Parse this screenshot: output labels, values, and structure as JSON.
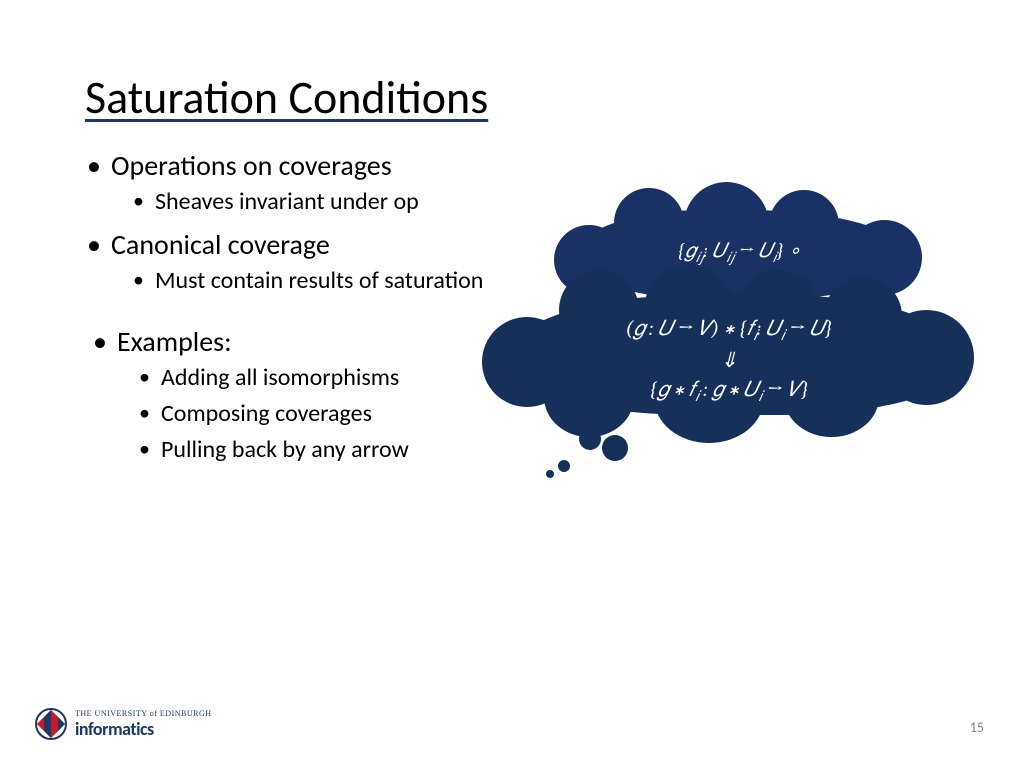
{
  "title": "Saturation Conditions",
  "bullets": {
    "b1": "Operations on coverages",
    "b1a": "Sheaves invariant under op",
    "b2": "Canonical coverage",
    "b2a": "Must contain results of saturation",
    "ex_title": "Examples:",
    "ex1": "Adding all isomorphisms",
    "ex2": "Composing coverages",
    "ex3": "Pulling back by any arrow"
  },
  "cloud": {
    "back_line": "{𝑔<sub>𝑖𝑗</sub>: 𝑈<sub>𝑖𝑗</sub> → 𝑈<sub>𝑖</sub>} ∘",
    "main_line1": "(𝑔 : 𝑈  → 𝑉) ∗  {𝑓<sub>𝑖</sub>: 𝑈<sub>𝑖</sub> → 𝑈}",
    "main_line2": "⇓",
    "main_line3": "{𝑔 ∗ 𝑓<sub>𝑖</sub> :  𝑔 ∗ 𝑈<sub>𝑖</sub> → 𝑉}",
    "bg_back": "#1a3263",
    "bg_main": "#16305a",
    "text_color": "#ffffff"
  },
  "footer": {
    "uni_line1": "THE UNIVERSITY of EDINBURGH",
    "uni_line2": "informatics",
    "page_number": "15",
    "accent": "#1f3864"
  },
  "colors": {
    "background": "#ffffff",
    "title_underline": "#1f3864",
    "body_text": "#000000",
    "pagenum": "#7f7f7f"
  },
  "typography": {
    "title_fontsize": 46,
    "body_fontsize": 28,
    "sub_fontsize": 24,
    "cloud_fontsize": 21
  }
}
